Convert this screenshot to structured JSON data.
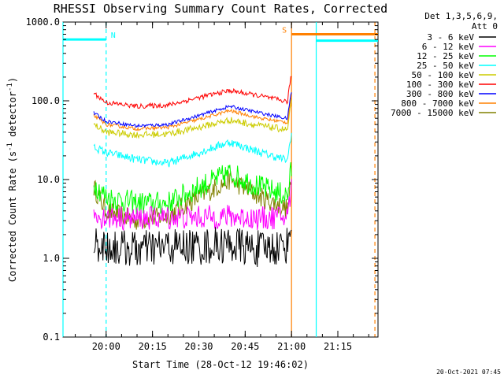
{
  "chart_data": {
    "type": "line",
    "title": "RHESSI Observing Summary Count Rates, Corrected",
    "xlabel": "Start Time (28-Oct-12 19:46:02)",
    "ylabel": "Corrected Count Rate (s",
    "ylabel_sup": "-1",
    "ylabel_mid": " detector",
    "ylabel_sup2": "-1",
    "ylabel_end": ")",
    "xlim": [
      "19:46:02",
      "21:28:00"
    ],
    "ylim": [
      0.1,
      1000
    ],
    "yscale": "log",
    "x_ticks": [
      "20:00",
      "20:15",
      "20:30",
      "20:45",
      "21:00",
      "21:15"
    ],
    "y_ticks": [
      "0.1",
      "1.0",
      "10.0",
      "100.0",
      "1000.0"
    ],
    "legend": {
      "header": [
        "Det 1,3,5,6,9,",
        "Att 0"
      ],
      "placement": "right"
    },
    "series": [
      {
        "name": "3 - 6 keV",
        "color": "#000000",
        "x": [
          "19:56",
          "20:00",
          "20:10",
          "20:20",
          "20:30",
          "20:40",
          "20:50",
          "21:00"
        ],
        "y": [
          1.6,
          1.4,
          1.3,
          1.4,
          1.4,
          1.5,
          1.3,
          1.5
        ]
      },
      {
        "name": "6 - 12 keV",
        "color": "#ff00ff",
        "x": [
          "19:56",
          "20:00",
          "20:10",
          "20:20",
          "20:30",
          "20:40",
          "20:50",
          "21:00"
        ],
        "y": [
          3.5,
          3.3,
          3.2,
          3.3,
          3.3,
          3.4,
          3.2,
          3.4
        ]
      },
      {
        "name": "12 - 25 keV",
        "color": "#00ff00",
        "x": [
          "19:56",
          "20:00",
          "20:10",
          "20:20",
          "20:30",
          "20:40",
          "20:50",
          "21:00"
        ],
        "y": [
          9,
          6,
          5,
          5,
          8,
          12,
          8,
          6
        ]
      },
      {
        "name": "25 - 50 keV",
        "color": "#00ffff",
        "x": [
          "19:56",
          "20:00",
          "20:10",
          "20:20",
          "20:30",
          "20:40",
          "20:50",
          "21:00"
        ],
        "y": [
          26,
          22,
          18,
          16,
          22,
          30,
          22,
          17
        ]
      },
      {
        "name": "50 - 100 keV",
        "color": "#cccc00",
        "x": [
          "19:56",
          "20:00",
          "20:10",
          "20:20",
          "20:30",
          "20:40",
          "20:50",
          "21:00"
        ],
        "y": [
          50,
          40,
          37,
          38,
          46,
          57,
          48,
          42
        ]
      },
      {
        "name": "100 - 300 keV",
        "color": "#ff0000",
        "x": [
          "19:56",
          "20:00",
          "20:10",
          "20:20",
          "20:30",
          "20:40",
          "20:50",
          "21:00"
        ],
        "y": [
          125,
          95,
          85,
          88,
          110,
          135,
          115,
          95
        ]
      },
      {
        "name": "300 - 800 keV",
        "color": "#0000ff",
        "x": [
          "19:56",
          "20:00",
          "20:10",
          "20:20",
          "20:30",
          "20:40",
          "20:50",
          "21:00"
        ],
        "y": [
          70,
          55,
          48,
          50,
          65,
          85,
          70,
          58
        ]
      },
      {
        "name": "800 - 7000 keV",
        "color": "#ff8000",
        "x": [
          "19:56",
          "20:00",
          "20:10",
          "20:20",
          "20:30",
          "20:40",
          "20:50",
          "21:00"
        ],
        "y": [
          65,
          50,
          44,
          46,
          58,
          75,
          60,
          52
        ]
      },
      {
        "name": "7000 - 15000 keV",
        "color": "#808000",
        "x": [
          "19:56",
          "20:00",
          "20:10",
          "20:20",
          "20:30",
          "20:40",
          "20:50",
          "21:00"
        ],
        "y": [
          8,
          4,
          3,
          3.5,
          6,
          10,
          6,
          4
        ]
      }
    ],
    "markers": [
      {
        "label": "N",
        "color": "#00ffff",
        "t_start": "19:46:02",
        "t_end": "20:00",
        "level": 600
      },
      {
        "label": "S",
        "color": "#ff8000",
        "t_start": "21:00",
        "t_end": "21:28:00",
        "level": 700
      },
      {
        "label": "",
        "color": "#00ffff",
        "t_start": "21:08",
        "t_end": "21:28:00",
        "level": 580
      }
    ],
    "vertical_lines": [
      {
        "t": "19:46:02",
        "color": "#00ffff",
        "style": "solid"
      },
      {
        "t": "20:00",
        "color": "#00ffff",
        "style": "dashed"
      },
      {
        "t": "21:00",
        "color": "#ff8000",
        "style": "solid"
      },
      {
        "t": "21:08",
        "color": "#00ffff",
        "style": "solid"
      },
      {
        "t": "21:27",
        "color": "#ff8000",
        "style": "dashed"
      }
    ],
    "timestamp": "20-Oct-2021 07:45",
    "grid": false
  }
}
